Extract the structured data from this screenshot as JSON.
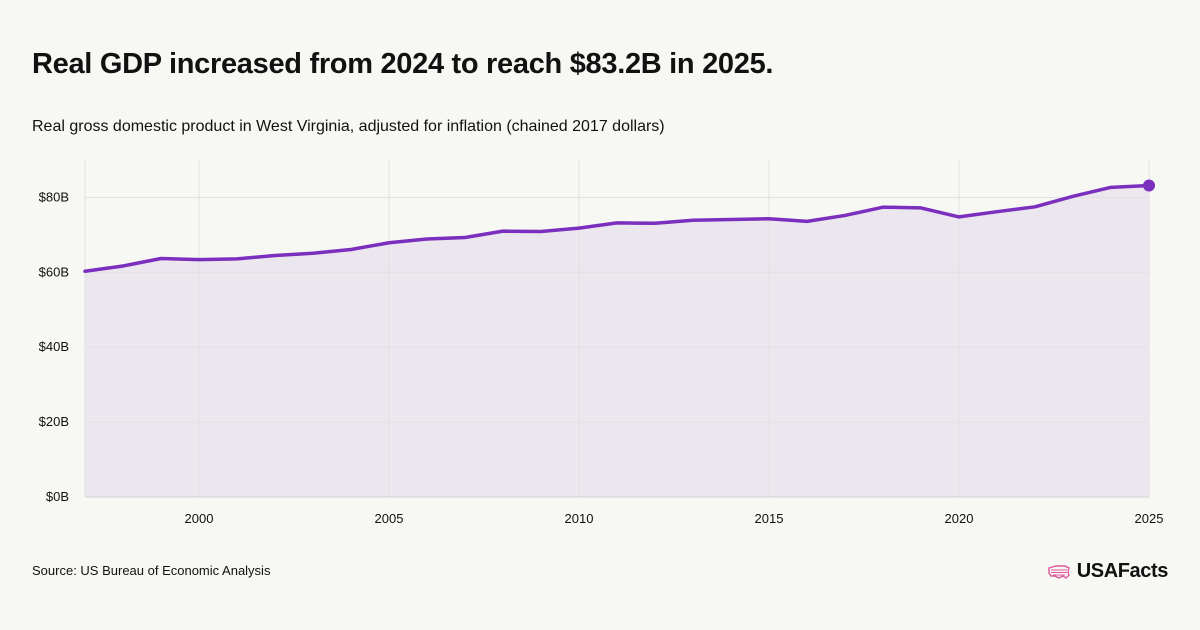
{
  "header": {
    "title": "Real GDP increased from 2024 to reach $83.2B in 2025.",
    "subtitle": "Real gross domestic product in West Virginia, adjusted for inflation (chained 2017 dollars)"
  },
  "footer": {
    "source": "Source: US Bureau of Economic Analysis",
    "brand": "USAFacts"
  },
  "colors": {
    "line": "#7b2fbe",
    "area": "#ece6ee",
    "grid": "#e2e0e3",
    "background": "#f7f7f3",
    "logo": "#e0569a"
  },
  "chart_data": {
    "type": "area",
    "x": [
      1997,
      1998,
      1999,
      2000,
      2001,
      2002,
      2003,
      2004,
      2005,
      2006,
      2007,
      2008,
      2009,
      2010,
      2011,
      2012,
      2013,
      2014,
      2015,
      2016,
      2017,
      2018,
      2019,
      2020,
      2021,
      2022,
      2023,
      2024,
      2025
    ],
    "values": [
      60.3,
      61.7,
      63.7,
      63.4,
      63.6,
      64.5,
      65.1,
      66.1,
      67.9,
      68.9,
      69.3,
      71.0,
      70.9,
      71.8,
      73.2,
      73.1,
      73.9,
      74.1,
      74.3,
      73.6,
      75.2,
      77.4,
      77.2,
      74.8,
      76.2,
      77.5,
      80.3,
      82.7,
      83.2
    ],
    "xticks": [
      "2000",
      "2005",
      "2010",
      "2015",
      "2020",
      "2025"
    ],
    "xtick_values": [
      2000,
      2005,
      2010,
      2015,
      2020,
      2025
    ],
    "yticks": [
      "$0B",
      "$20B",
      "$40B",
      "$60B",
      "$80B"
    ],
    "ytick_values": [
      0,
      20,
      40,
      60,
      80
    ],
    "xlim": [
      1997,
      2025
    ],
    "ylim": [
      0,
      90
    ],
    "highlight_last_point": true,
    "grid": true
  }
}
